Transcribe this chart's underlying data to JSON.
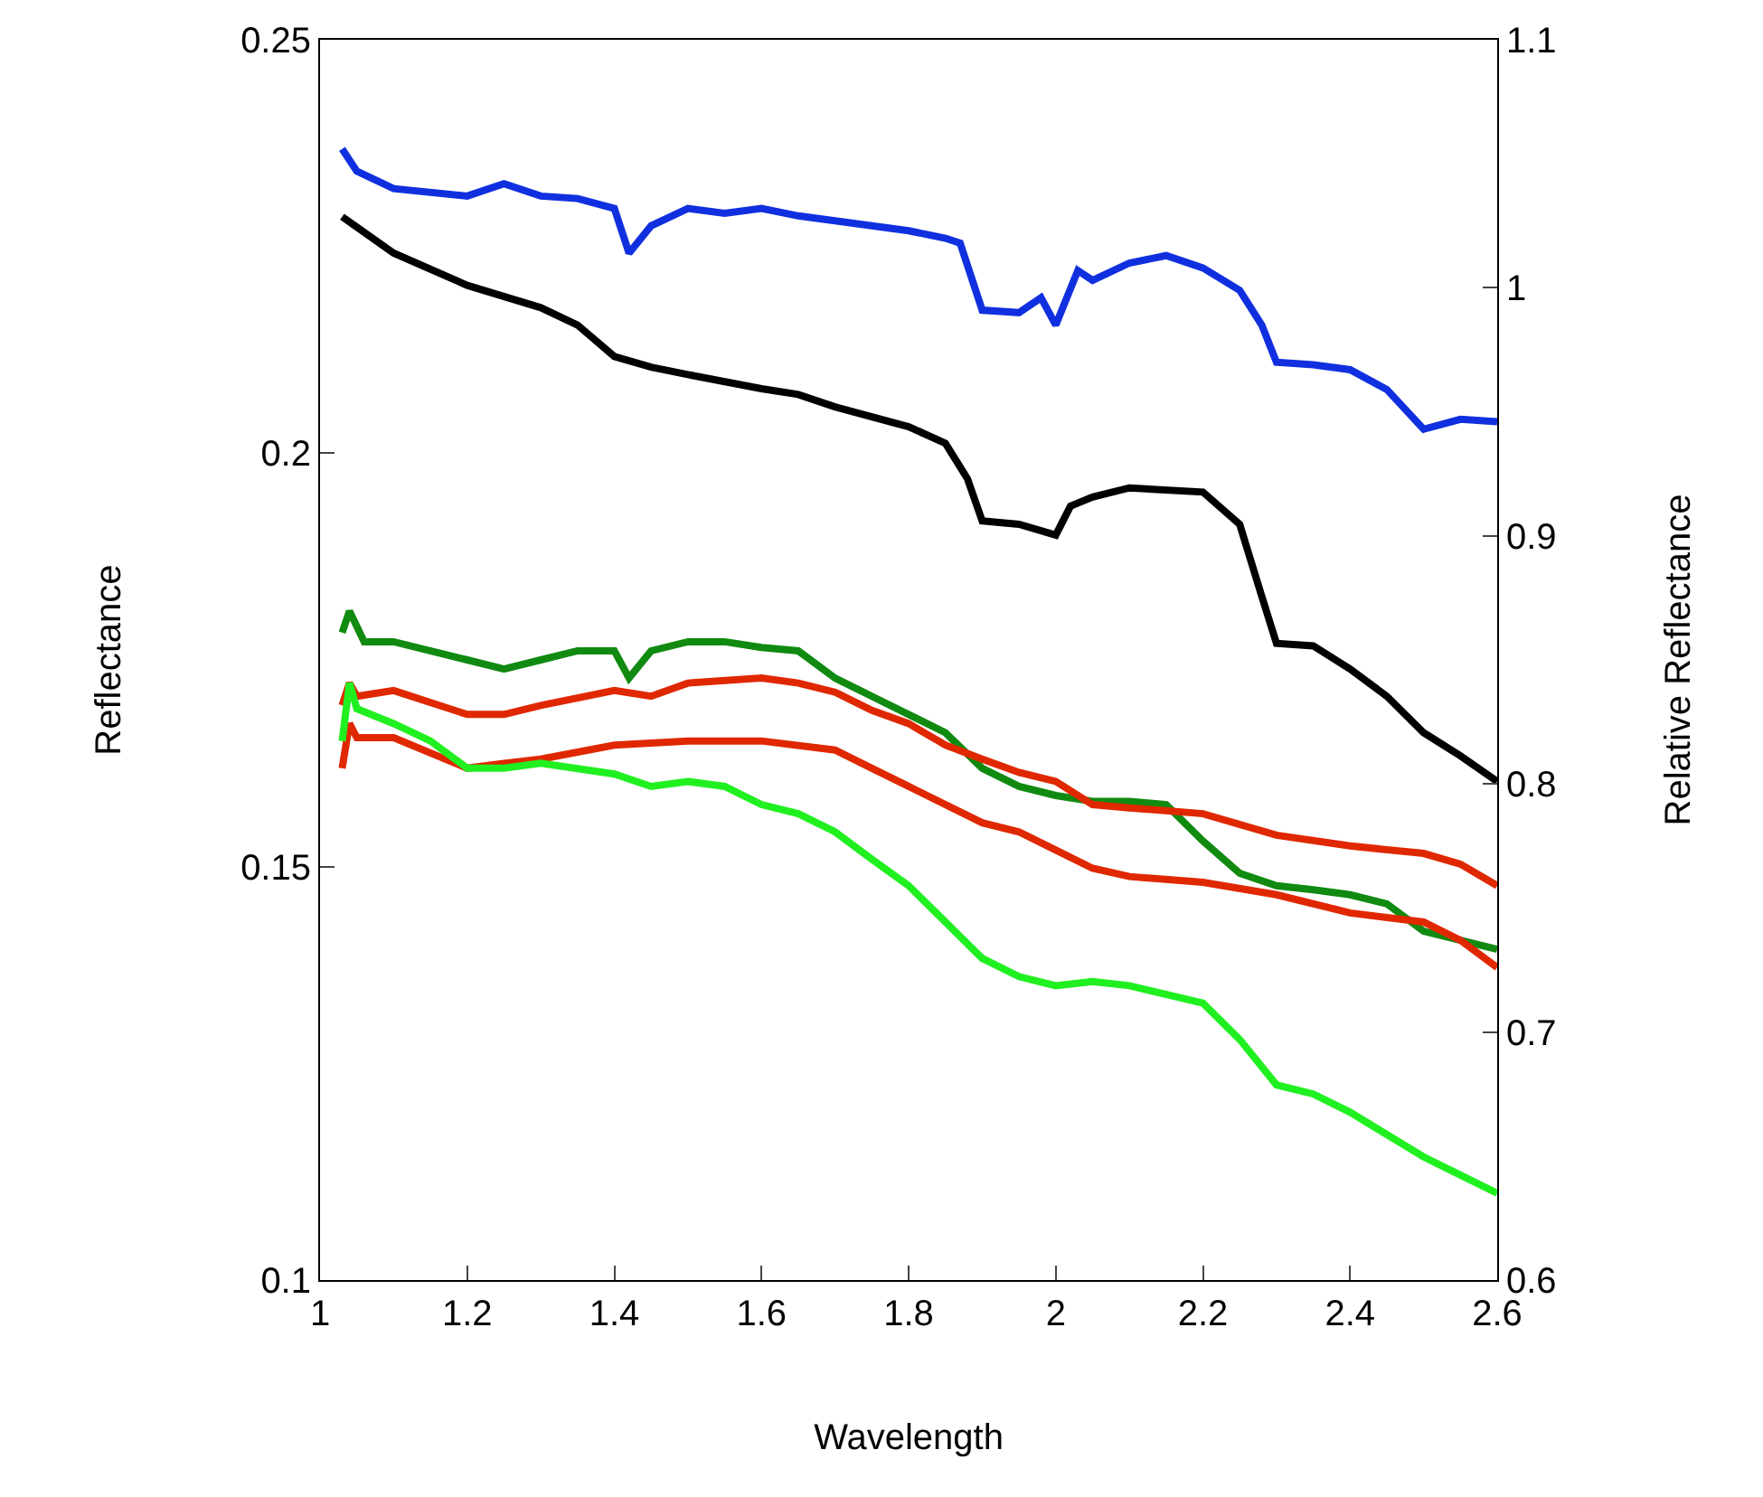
{
  "chart_data": {
    "type": "line",
    "xlabel": "Wavelength",
    "ylabel": "Reflectance",
    "y2label": "Relative Reflectance",
    "xlim": [
      1,
      2.6
    ],
    "xticks": [
      1,
      1.2,
      1.4,
      1.6,
      1.8,
      2,
      2.2,
      2.4,
      2.6
    ],
    "ylim": [
      0.1,
      0.25
    ],
    "yticks": [
      0.1,
      0.15,
      0.2,
      0.25
    ],
    "y2lim": [
      0.6,
      1.1
    ],
    "y2ticks": [
      0.6,
      0.7,
      0.8,
      0.9,
      1,
      1.1
    ],
    "grid": false,
    "marker": "none",
    "line_style": "solid",
    "series": [
      {
        "color": "#1030e0",
        "axis": "y2",
        "x": [
          1.03,
          1.05,
          1.1,
          1.2,
          1.25,
          1.3,
          1.35,
          1.4,
          1.42,
          1.45,
          1.5,
          1.55,
          1.6,
          1.65,
          1.7,
          1.75,
          1.8,
          1.85,
          1.87,
          1.9,
          1.95,
          1.98,
          2.0,
          2.03,
          2.05,
          2.1,
          2.15,
          2.2,
          2.25,
          2.28,
          2.3,
          2.35,
          2.4,
          2.45,
          2.5,
          2.55,
          2.6
        ],
        "values": [
          1.056,
          1.047,
          1.04,
          1.037,
          1.042,
          1.037,
          1.036,
          1.032,
          1.014,
          1.025,
          1.032,
          1.03,
          1.032,
          1.029,
          1.027,
          1.025,
          1.023,
          1.02,
          1.018,
          0.991,
          0.99,
          0.996,
          0.985,
          1.007,
          1.003,
          1.01,
          1.013,
          1.008,
          0.999,
          0.985,
          0.97,
          0.969,
          0.967,
          0.959,
          0.943,
          0.947,
          0.946
        ]
      },
      {
        "color": "#000000",
        "x": [
          1.03,
          1.1,
          1.2,
          1.3,
          1.35,
          1.4,
          1.45,
          1.5,
          1.6,
          1.65,
          1.7,
          1.8,
          1.85,
          1.88,
          1.9,
          1.95,
          2.0,
          2.02,
          2.05,
          2.1,
          2.2,
          2.25,
          2.28,
          2.3,
          2.35,
          2.4,
          2.45,
          2.5,
          2.55,
          2.6
        ],
        "values": [
          0.2286,
          0.2242,
          0.2203,
          0.2176,
          0.2155,
          0.2117,
          0.2104,
          0.2095,
          0.2078,
          0.2071,
          0.2056,
          0.2032,
          0.2012,
          0.1969,
          0.1918,
          0.1914,
          0.1901,
          0.1936,
          0.1947,
          0.1958,
          0.1953,
          0.1914,
          0.1827,
          0.177,
          0.1767,
          0.1739,
          0.1706,
          0.1662,
          0.1634,
          0.1603
        ]
      },
      {
        "color": "#108a10",
        "x": [
          1.03,
          1.04,
          1.06,
          1.1,
          1.2,
          1.25,
          1.3,
          1.35,
          1.4,
          1.42,
          1.45,
          1.5,
          1.55,
          1.6,
          1.65,
          1.7,
          1.75,
          1.8,
          1.85,
          1.9,
          1.95,
          2.0,
          2.05,
          2.1,
          2.15,
          2.2,
          2.25,
          2.3,
          2.35,
          2.4,
          2.45,
          2.5,
          2.55,
          2.6
        ],
        "values": [
          0.1783,
          0.1809,
          0.1772,
          0.1772,
          0.175,
          0.1739,
          0.175,
          0.1761,
          0.1761,
          0.1728,
          0.1761,
          0.1772,
          0.1772,
          0.1765,
          0.1761,
          0.1728,
          0.1706,
          0.1684,
          0.1662,
          0.1619,
          0.1597,
          0.1586,
          0.1579,
          0.1579,
          0.1575,
          0.1531,
          0.1492,
          0.1477,
          0.1472,
          0.1466,
          0.1455,
          0.1422,
          0.1411,
          0.14
        ]
      },
      {
        "color": "#e02800",
        "x": [
          1.03,
          1.04,
          1.05,
          1.1,
          1.2,
          1.25,
          1.3,
          1.4,
          1.45,
          1.5,
          1.6,
          1.65,
          1.7,
          1.75,
          1.8,
          1.85,
          1.9,
          1.95,
          2.0,
          2.05,
          2.1,
          2.2,
          2.3,
          2.4,
          2.5,
          2.55,
          2.6
        ],
        "values": [
          0.1695,
          0.1722,
          0.1706,
          0.1713,
          0.1684,
          0.1684,
          0.1695,
          0.1713,
          0.1706,
          0.1722,
          0.1728,
          0.1722,
          0.1711,
          0.1689,
          0.1673,
          0.1647,
          0.163,
          0.1614,
          0.1603,
          0.1575,
          0.1571,
          0.1564,
          0.1538,
          0.1525,
          0.1516,
          0.1503,
          0.1477
        ]
      },
      {
        "color": "#e02800",
        "x": [
          1.03,
          1.04,
          1.05,
          1.1,
          1.2,
          1.25,
          1.3,
          1.4,
          1.5,
          1.6,
          1.7,
          1.75,
          1.8,
          1.9,
          1.95,
          2.0,
          2.05,
          2.1,
          2.2,
          2.3,
          2.4,
          2.5,
          2.55,
          2.6
        ],
        "values": [
          0.1619,
          0.1673,
          0.1656,
          0.1656,
          0.1619,
          0.1625,
          0.163,
          0.1647,
          0.1652,
          0.1652,
          0.1641,
          0.1619,
          0.1597,
          0.1553,
          0.1542,
          0.152,
          0.1498,
          0.1488,
          0.1481,
          0.1466,
          0.1444,
          0.1433,
          0.1411,
          0.1378
        ]
      },
      {
        "color": "#20f020",
        "x": [
          1.03,
          1.04,
          1.05,
          1.1,
          1.15,
          1.2,
          1.25,
          1.3,
          1.4,
          1.45,
          1.5,
          1.55,
          1.6,
          1.65,
          1.7,
          1.75,
          1.8,
          1.85,
          1.9,
          1.95,
          2.0,
          2.05,
          2.1,
          2.2,
          2.25,
          2.3,
          2.35,
          2.4,
          2.5,
          2.55,
          2.6
        ],
        "values": [
          0.1652,
          0.1722,
          0.1691,
          0.1673,
          0.1652,
          0.1619,
          0.1619,
          0.1625,
          0.1612,
          0.1597,
          0.1603,
          0.1597,
          0.1575,
          0.1564,
          0.1542,
          0.1509,
          0.1477,
          0.1433,
          0.1389,
          0.1367,
          0.1356,
          0.1361,
          0.1356,
          0.1335,
          0.1291,
          0.1236,
          0.1225,
          0.1203,
          0.1149,
          0.1127,
          0.1105
        ]
      }
    ]
  }
}
